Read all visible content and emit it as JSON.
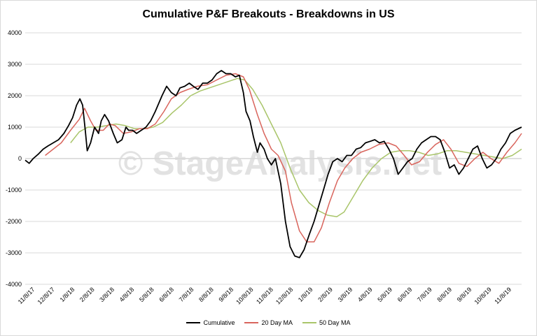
{
  "chart_data": {
    "type": "line",
    "title": "Cumulative P&F Breakouts - Breakdowns in US",
    "watermark": "© StageAnalysis.net",
    "ylim": [
      -4000,
      4000
    ],
    "yticks": [
      4000,
      3000,
      2000,
      1000,
      0,
      -1000,
      -2000,
      -3000,
      -4000
    ],
    "xlim": [
      "2017-11-08",
      "2019-11-22"
    ],
    "xtick_labels": [
      "11/8/17",
      "12/8/17",
      "1/8/18",
      "2/8/18",
      "3/8/18",
      "4/8/18",
      "5/8/18",
      "6/8/18",
      "7/8/18",
      "8/8/18",
      "9/8/18",
      "10/8/18",
      "11/8/18",
      "12/8/18",
      "1/8/19",
      "2/8/19",
      "3/8/19",
      "4/8/19",
      "5/8/19",
      "6/8/19",
      "7/8/19",
      "8/8/19",
      "9/8/19",
      "10/8/19",
      "11/8/19"
    ],
    "grid": true,
    "legend_position": "bottom",
    "series": [
      {
        "name": "Cumulative",
        "color": "#000000",
        "points": [
          [
            "2017-11-08",
            -50
          ],
          [
            "2017-11-14",
            -150
          ],
          [
            "2017-11-20",
            0
          ],
          [
            "2017-11-28",
            150
          ],
          [
            "2017-12-05",
            300
          ],
          [
            "2017-12-12",
            400
          ],
          [
            "2017-12-20",
            500
          ],
          [
            "2017-12-28",
            600
          ],
          [
            "2018-01-05",
            800
          ],
          [
            "2018-01-12",
            1050
          ],
          [
            "2018-01-18",
            1300
          ],
          [
            "2018-01-24",
            1700
          ],
          [
            "2018-01-29",
            1900
          ],
          [
            "2018-02-02",
            1700
          ],
          [
            "2018-02-06",
            900
          ],
          [
            "2018-02-09",
            250
          ],
          [
            "2018-02-14",
            500
          ],
          [
            "2018-02-20",
            1000
          ],
          [
            "2018-02-26",
            800
          ],
          [
            "2018-03-02",
            1200
          ],
          [
            "2018-03-07",
            1400
          ],
          [
            "2018-03-13",
            1200
          ],
          [
            "2018-03-20",
            800
          ],
          [
            "2018-03-26",
            500
          ],
          [
            "2018-04-02",
            600
          ],
          [
            "2018-04-08",
            1000
          ],
          [
            "2018-04-12",
            900
          ],
          [
            "2018-04-18",
            900
          ],
          [
            "2018-04-24",
            800
          ],
          [
            "2018-05-01",
            900
          ],
          [
            "2018-05-08",
            1000
          ],
          [
            "2018-05-15",
            1200
          ],
          [
            "2018-05-22",
            1500
          ],
          [
            "2018-06-01",
            2000
          ],
          [
            "2018-06-08",
            2300
          ],
          [
            "2018-06-15",
            2100
          ],
          [
            "2018-06-22",
            2000
          ],
          [
            "2018-06-28",
            2250
          ],
          [
            "2018-07-05",
            2300
          ],
          [
            "2018-07-12",
            2400
          ],
          [
            "2018-07-18",
            2300
          ],
          [
            "2018-07-25",
            2200
          ],
          [
            "2018-08-01",
            2400
          ],
          [
            "2018-08-08",
            2400
          ],
          [
            "2018-08-15",
            2500
          ],
          [
            "2018-08-22",
            2700
          ],
          [
            "2018-08-29",
            2800
          ],
          [
            "2018-09-05",
            2700
          ],
          [
            "2018-09-12",
            2700
          ],
          [
            "2018-09-19",
            2600
          ],
          [
            "2018-09-25",
            2650
          ],
          [
            "2018-10-01",
            2100
          ],
          [
            "2018-10-05",
            1500
          ],
          [
            "2018-10-11",
            1200
          ],
          [
            "2018-10-16",
            700
          ],
          [
            "2018-10-22",
            200
          ],
          [
            "2018-10-26",
            500
          ],
          [
            "2018-11-01",
            300
          ],
          [
            "2018-11-06",
            0
          ],
          [
            "2018-11-12",
            -200
          ],
          [
            "2018-11-18",
            0
          ],
          [
            "2018-11-26",
            -800
          ],
          [
            "2018-12-03",
            -2000
          ],
          [
            "2018-12-10",
            -2800
          ],
          [
            "2018-12-17",
            -3100
          ],
          [
            "2018-12-24",
            -3150
          ],
          [
            "2018-12-31",
            -2900
          ],
          [
            "2019-01-08",
            -2400
          ],
          [
            "2019-01-15",
            -2000
          ],
          [
            "2019-01-22",
            -1500
          ],
          [
            "2019-01-29",
            -1000
          ],
          [
            "2019-02-05",
            -500
          ],
          [
            "2019-02-12",
            -100
          ],
          [
            "2019-02-19",
            0
          ],
          [
            "2019-02-26",
            -100
          ],
          [
            "2019-03-05",
            100
          ],
          [
            "2019-03-12",
            100
          ],
          [
            "2019-03-19",
            300
          ],
          [
            "2019-03-26",
            350
          ],
          [
            "2019-04-02",
            500
          ],
          [
            "2019-04-09",
            550
          ],
          [
            "2019-04-16",
            600
          ],
          [
            "2019-04-23",
            500
          ],
          [
            "2019-04-30",
            550
          ],
          [
            "2019-05-07",
            300
          ],
          [
            "2019-05-14",
            0
          ],
          [
            "2019-05-21",
            -500
          ],
          [
            "2019-05-28",
            -300
          ],
          [
            "2019-06-04",
            -100
          ],
          [
            "2019-06-11",
            0
          ],
          [
            "2019-06-18",
            300
          ],
          [
            "2019-06-25",
            500
          ],
          [
            "2019-07-02",
            600
          ],
          [
            "2019-07-09",
            700
          ],
          [
            "2019-07-16",
            700
          ],
          [
            "2019-07-23",
            600
          ],
          [
            "2019-07-30",
            200
          ],
          [
            "2019-08-06",
            -300
          ],
          [
            "2019-08-13",
            -200
          ],
          [
            "2019-08-20",
            -500
          ],
          [
            "2019-08-27",
            -300
          ],
          [
            "2019-09-03",
            0
          ],
          [
            "2019-09-10",
            300
          ],
          [
            "2019-09-17",
            400
          ],
          [
            "2019-09-24",
            0
          ],
          [
            "2019-10-01",
            -300
          ],
          [
            "2019-10-08",
            -200
          ],
          [
            "2019-10-15",
            0
          ],
          [
            "2019-10-22",
            300
          ],
          [
            "2019-10-29",
            500
          ],
          [
            "2019-11-05",
            800
          ],
          [
            "2019-11-12",
            900
          ],
          [
            "2019-11-22",
            1000
          ]
        ]
      },
      {
        "name": "20 Day MA",
        "color": "#d9655d",
        "points": [
          [
            "2017-12-08",
            100
          ],
          [
            "2017-12-20",
            300
          ],
          [
            "2018-01-01",
            500
          ],
          [
            "2018-01-15",
            900
          ],
          [
            "2018-01-28",
            1250
          ],
          [
            "2018-02-05",
            1600
          ],
          [
            "2018-02-14",
            1200
          ],
          [
            "2018-02-22",
            900
          ],
          [
            "2018-03-05",
            900
          ],
          [
            "2018-03-14",
            1100
          ],
          [
            "2018-03-23",
            1050
          ],
          [
            "2018-04-04",
            800
          ],
          [
            "2018-04-16",
            850
          ],
          [
            "2018-04-28",
            950
          ],
          [
            "2018-05-10",
            950
          ],
          [
            "2018-05-22",
            1100
          ],
          [
            "2018-06-04",
            1500
          ],
          [
            "2018-06-15",
            1900
          ],
          [
            "2018-06-28",
            2100
          ],
          [
            "2018-07-10",
            2200
          ],
          [
            "2018-07-24",
            2300
          ],
          [
            "2018-08-08",
            2350
          ],
          [
            "2018-08-22",
            2500
          ],
          [
            "2018-09-05",
            2650
          ],
          [
            "2018-09-19",
            2700
          ],
          [
            "2018-10-01",
            2600
          ],
          [
            "2018-10-10",
            2200
          ],
          [
            "2018-10-22",
            1400
          ],
          [
            "2018-11-01",
            800
          ],
          [
            "2018-11-12",
            300
          ],
          [
            "2018-11-22",
            100
          ],
          [
            "2018-12-03",
            -400
          ],
          [
            "2018-12-12",
            -1400
          ],
          [
            "2018-12-24",
            -2300
          ],
          [
            "2019-01-04",
            -2650
          ],
          [
            "2019-01-15",
            -2650
          ],
          [
            "2019-01-26",
            -2200
          ],
          [
            "2019-02-07",
            -1400
          ],
          [
            "2019-02-19",
            -700
          ],
          [
            "2019-03-02",
            -300
          ],
          [
            "2019-03-14",
            0
          ],
          [
            "2019-03-26",
            200
          ],
          [
            "2019-04-08",
            300
          ],
          [
            "2019-04-22",
            450
          ],
          [
            "2019-05-06",
            500
          ],
          [
            "2019-05-18",
            400
          ],
          [
            "2019-05-30",
            100
          ],
          [
            "2019-06-10",
            -200
          ],
          [
            "2019-06-22",
            -100
          ],
          [
            "2019-07-04",
            200
          ],
          [
            "2019-07-16",
            450
          ],
          [
            "2019-07-28",
            600
          ],
          [
            "2019-08-08",
            300
          ],
          [
            "2019-08-20",
            -150
          ],
          [
            "2019-09-01",
            -250
          ],
          [
            "2019-09-13",
            0
          ],
          [
            "2019-09-25",
            200
          ],
          [
            "2019-10-07",
            0
          ],
          [
            "2019-10-19",
            -150
          ],
          [
            "2019-10-31",
            200
          ],
          [
            "2019-11-12",
            500
          ],
          [
            "2019-11-22",
            800
          ]
        ]
      },
      {
        "name": "50 Day MA",
        "color": "#a9c56a",
        "points": [
          [
            "2018-01-15",
            500
          ],
          [
            "2018-01-28",
            850
          ],
          [
            "2018-02-10",
            1000
          ],
          [
            "2018-02-24",
            1000
          ],
          [
            "2018-03-10",
            1050
          ],
          [
            "2018-03-24",
            1100
          ],
          [
            "2018-04-07",
            1050
          ],
          [
            "2018-04-21",
            950
          ],
          [
            "2018-05-05",
            950
          ],
          [
            "2018-05-19",
            1000
          ],
          [
            "2018-06-02",
            1150
          ],
          [
            "2018-06-16",
            1450
          ],
          [
            "2018-06-30",
            1700
          ],
          [
            "2018-07-14",
            2000
          ],
          [
            "2018-07-28",
            2150
          ],
          [
            "2018-08-11",
            2250
          ],
          [
            "2018-08-25",
            2350
          ],
          [
            "2018-09-08",
            2450
          ],
          [
            "2018-09-22",
            2550
          ],
          [
            "2018-10-03",
            2500
          ],
          [
            "2018-10-15",
            2200
          ],
          [
            "2018-10-29",
            1700
          ],
          [
            "2018-11-12",
            1100
          ],
          [
            "2018-11-26",
            500
          ],
          [
            "2018-12-10",
            -300
          ],
          [
            "2018-12-24",
            -1000
          ],
          [
            "2019-01-07",
            -1400
          ],
          [
            "2019-01-21",
            -1650
          ],
          [
            "2019-02-04",
            -1800
          ],
          [
            "2019-02-18",
            -1850
          ],
          [
            "2019-03-01",
            -1700
          ],
          [
            "2019-03-15",
            -1200
          ],
          [
            "2019-03-29",
            -700
          ],
          [
            "2019-04-12",
            -300
          ],
          [
            "2019-04-26",
            0
          ],
          [
            "2019-05-10",
            200
          ],
          [
            "2019-05-24",
            250
          ],
          [
            "2019-06-07",
            250
          ],
          [
            "2019-06-21",
            200
          ],
          [
            "2019-07-05",
            100
          ],
          [
            "2019-07-19",
            150
          ],
          [
            "2019-08-02",
            250
          ],
          [
            "2019-08-16",
            250
          ],
          [
            "2019-08-30",
            200
          ],
          [
            "2019-09-13",
            150
          ],
          [
            "2019-09-27",
            100
          ],
          [
            "2019-10-11",
            50
          ],
          [
            "2019-10-25",
            0
          ],
          [
            "2019-11-08",
            100
          ],
          [
            "2019-11-22",
            300
          ]
        ]
      }
    ]
  }
}
